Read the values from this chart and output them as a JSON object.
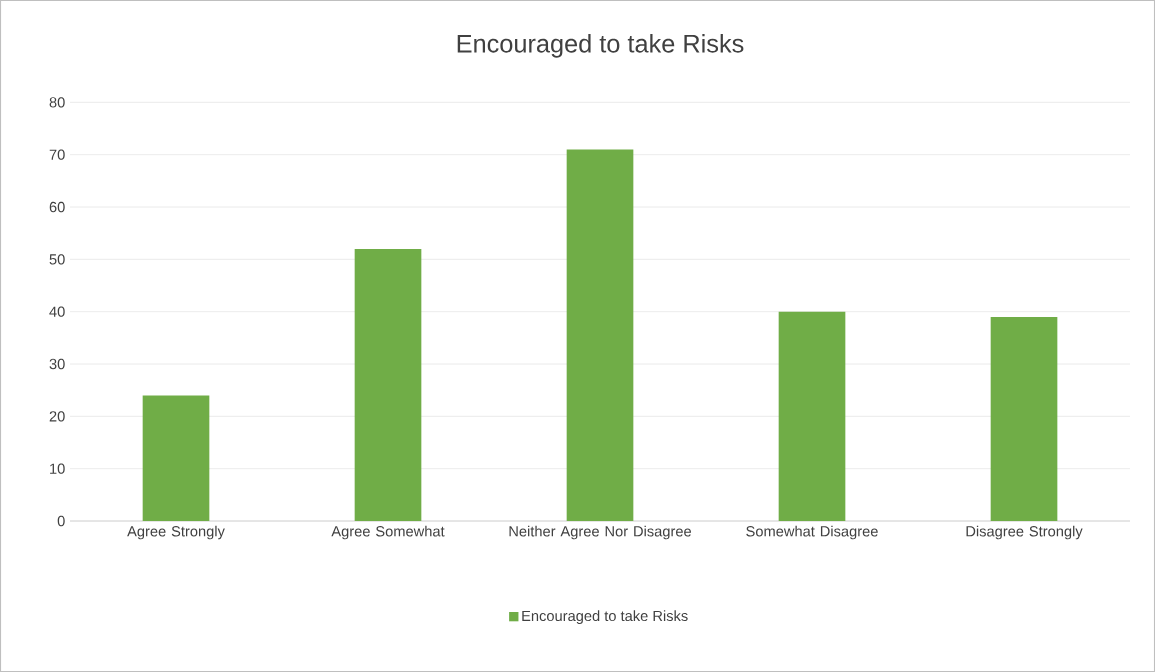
{
  "chart_data": {
    "type": "bar",
    "title": "Encouraged to take Risks",
    "categories": [
      "Agree Strongly",
      "Agree Somewhat",
      "Neither Agree Nor Disagree",
      "Somewhat Disagree",
      "Disagree Strongly"
    ],
    "series": [
      {
        "name": "Encouraged to take Risks",
        "color": "#70ad47",
        "values": [
          24,
          52,
          71,
          40,
          39
        ]
      }
    ],
    "ylim": [
      0,
      80
    ],
    "yticks": [
      0,
      10,
      20,
      30,
      40,
      50,
      60,
      70,
      80
    ],
    "grid": "y",
    "legend": "bottom"
  }
}
